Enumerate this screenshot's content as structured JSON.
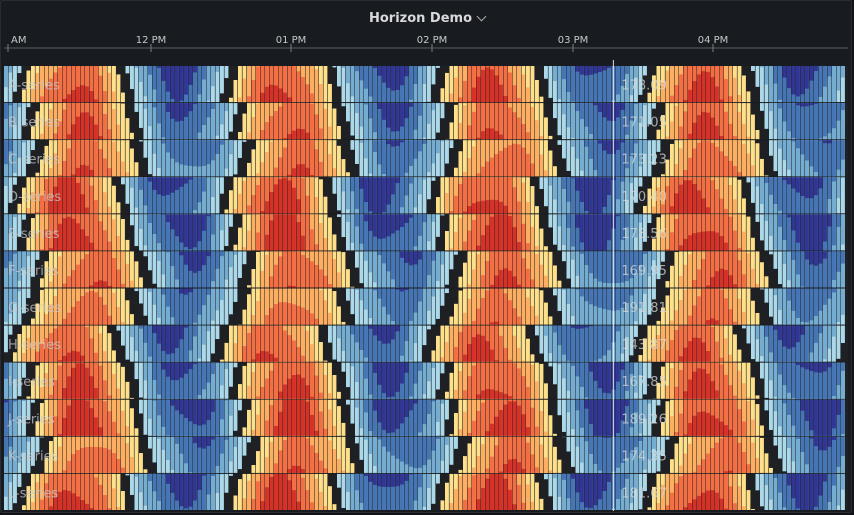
{
  "panel": {
    "title": "Horizon Demo"
  },
  "chart_data": {
    "type": "horizon",
    "x_ticks": [
      "AM",
      "12 PM",
      "01 PM",
      "02 PM",
      "03 PM",
      "04 PM"
    ],
    "cursor_time_fraction": 0.722,
    "colors": {
      "positive": [
        "#fee08b",
        "#fdae61",
        "#f46d43",
        "#d73027"
      ],
      "negative": [
        "#abd9e9",
        "#74add1",
        "#4575b4",
        "#313695"
      ],
      "background": "#1f2024"
    },
    "series": [
      {
        "name": "A-series",
        "cursor_value": "178.09",
        "phase": 0.0,
        "amp": 1.0
      },
      {
        "name": "B-series",
        "cursor_value": "171.05",
        "phase": 0.1,
        "amp": 0.95
      },
      {
        "name": "C-series",
        "cursor_value": "173.23",
        "phase": 0.18,
        "amp": 0.85
      },
      {
        "name": "D-series",
        "cursor_value": "170.40",
        "phase": -0.05,
        "amp": 1.05
      },
      {
        "name": "E-series",
        "cursor_value": "178.56",
        "phase": 0.05,
        "amp": 1.1
      },
      {
        "name": "F-series",
        "cursor_value": "169.95",
        "phase": 0.22,
        "amp": 0.9
      },
      {
        "name": "G-series",
        "cursor_value": "191.81",
        "phase": 0.12,
        "amp": 0.8
      },
      {
        "name": "H-series",
        "cursor_value": "143.87",
        "phase": -0.1,
        "amp": 0.95
      },
      {
        "name": "I-series",
        "cursor_value": "167.85",
        "phase": 0.08,
        "amp": 1.0
      },
      {
        "name": "J-series",
        "cursor_value": "189.26",
        "phase": 0.15,
        "amp": 1.1
      },
      {
        "name": "K-series",
        "cursor_value": "174.35",
        "phase": 0.25,
        "amp": 0.85
      },
      {
        "name": "L-series",
        "cursor_value": "181.67",
        "phase": 0.02,
        "amp": 1.05
      }
    ]
  }
}
